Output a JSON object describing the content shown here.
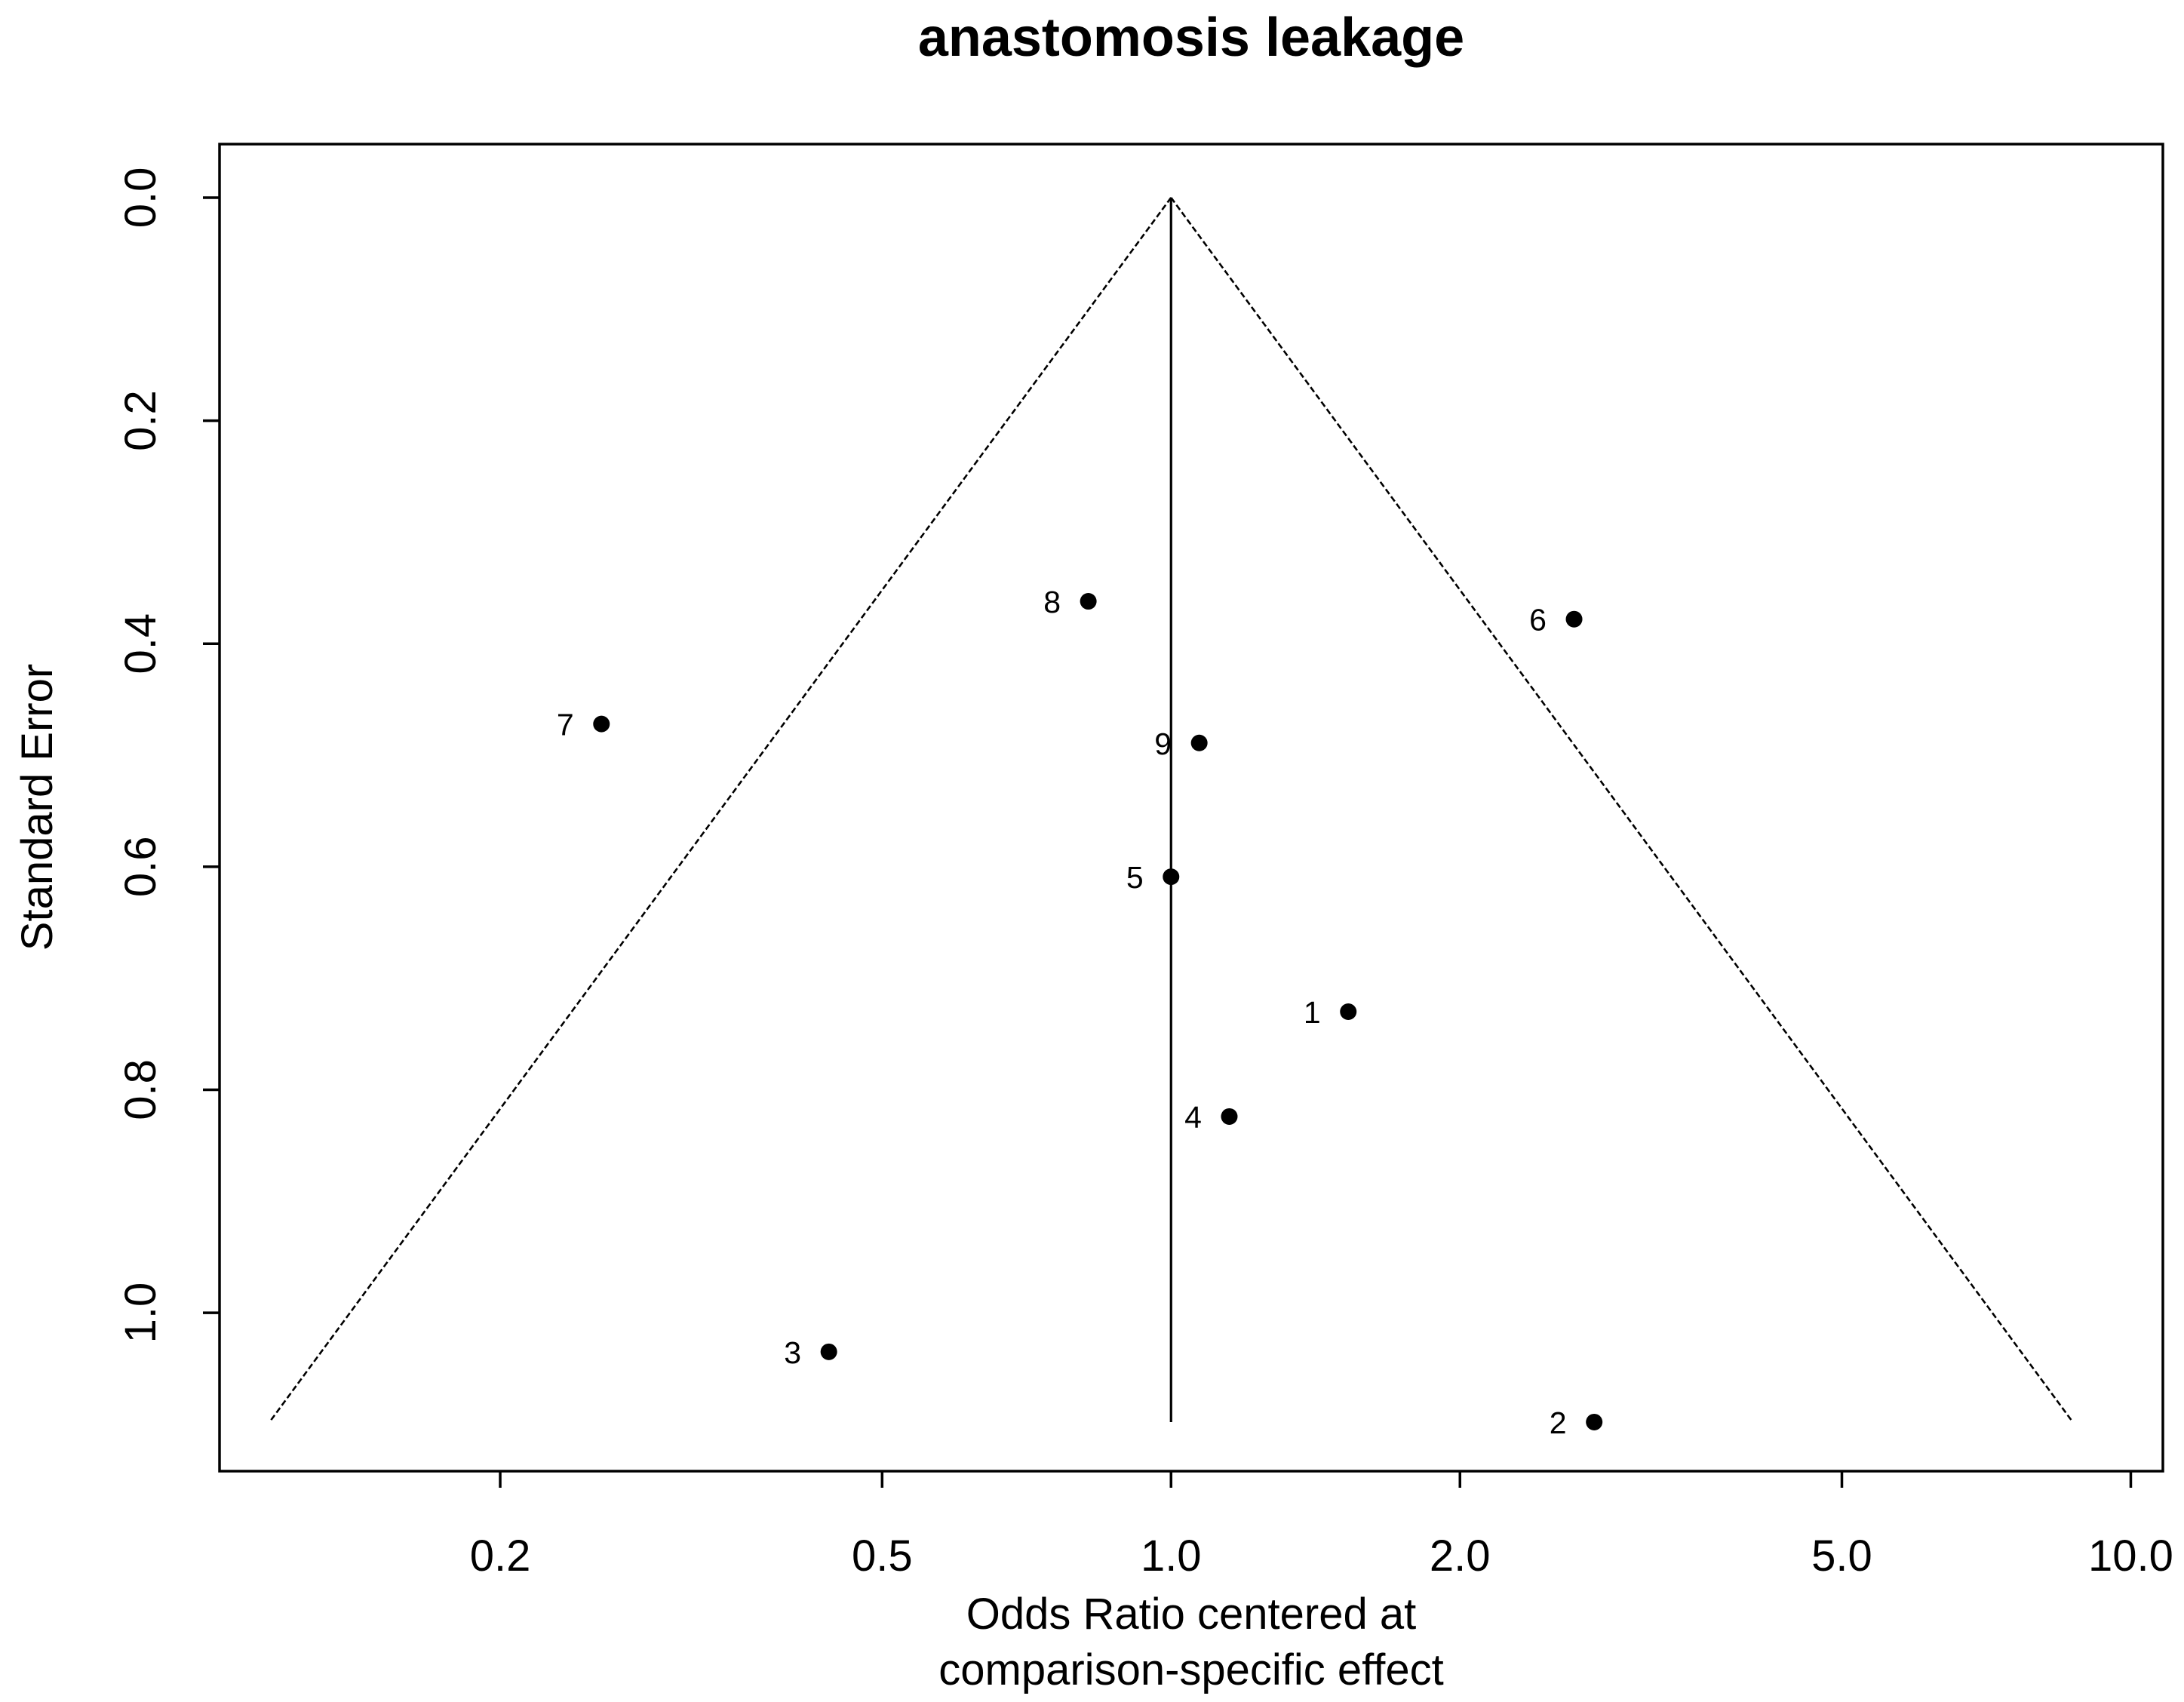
{
  "chart_data": {
    "type": "scatter",
    "title": "anastomosis leakage",
    "xlabel": [
      "Odds Ratio centered at",
      "comparison-specific effect"
    ],
    "ylabel": "Standard Error",
    "x_scale": "log",
    "xlim": [
      0.102,
      10.8
    ],
    "ylim": [
      -0.048,
      1.142
    ],
    "y_reversed": true,
    "grid": false,
    "legend": "none",
    "x_ticks": [
      {
        "value": 0.2,
        "label": "0.2"
      },
      {
        "value": 0.5,
        "label": "0.5"
      },
      {
        "value": 1.0,
        "label": "1.0"
      },
      {
        "value": 2.0,
        "label": "2.0"
      },
      {
        "value": 5.0,
        "label": "5.0"
      },
      {
        "value": 10.0,
        "label": "10.0"
      }
    ],
    "y_ticks": [
      {
        "value": 0.0,
        "label": "0.0"
      },
      {
        "value": 0.2,
        "label": "0.2"
      },
      {
        "value": 0.4,
        "label": "0.4"
      },
      {
        "value": 0.6,
        "label": "0.6"
      },
      {
        "value": 0.8,
        "label": "0.8"
      },
      {
        "value": 1.0,
        "label": "1.0"
      }
    ],
    "points": [
      {
        "label": "1",
        "x": 1.53,
        "y": 0.73
      },
      {
        "label": "2",
        "x": 2.76,
        "y": 1.098
      },
      {
        "label": "3",
        "x": 0.44,
        "y": 1.035
      },
      {
        "label": "4",
        "x": 1.15,
        "y": 0.824
      },
      {
        "label": "5",
        "x": 1.0,
        "y": 0.609
      },
      {
        "label": "6",
        "x": 2.63,
        "y": 0.378
      },
      {
        "label": "7",
        "x": 0.255,
        "y": 0.472
      },
      {
        "label": "8",
        "x": 0.82,
        "y": 0.362
      },
      {
        "label": "9",
        "x": 1.07,
        "y": 0.489
      }
    ],
    "reference_line": {
      "x": 1.0,
      "y_from": 0.0,
      "y_to": 1.098
    },
    "funnel": {
      "apex": [
        1.0,
        0.0
      ],
      "left": [
        0.115,
        1.098
      ],
      "right": [
        8.7,
        1.098
      ]
    },
    "colors": {
      "points": "#000000",
      "labels": "#000000",
      "lines": "#000000",
      "background": "#ffffff"
    }
  }
}
